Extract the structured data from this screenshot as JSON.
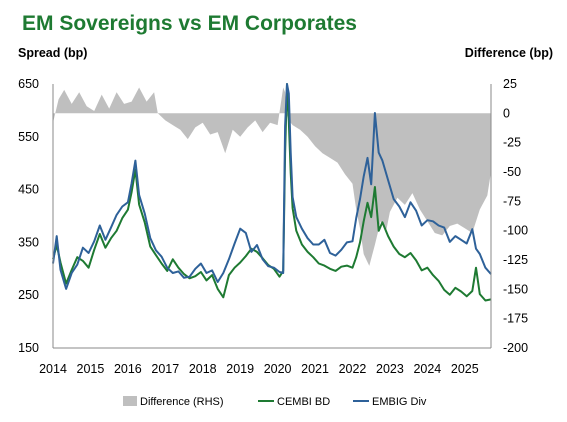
{
  "chart_data": {
    "type": "line",
    "title": "EM Sovereigns vs EM Corporates",
    "ylabel_left": "Spread (bp)",
    "ylabel_right": "Difference (bp)",
    "ylim_left": [
      150,
      650
    ],
    "ylim_right": [
      -200,
      25
    ],
    "yticks_left": [
      150,
      250,
      350,
      450,
      550,
      650
    ],
    "yticks_right": [
      -200,
      -175,
      -150,
      -125,
      -100,
      -75,
      -50,
      -25,
      0,
      25
    ],
    "xlim": [
      2014.0,
      2025.7
    ],
    "xticks": [
      "2014",
      "2015",
      "2016",
      "2017",
      "2018",
      "2019",
      "2020",
      "2021",
      "2022",
      "2023",
      "2024",
      "2025"
    ],
    "grid": false,
    "legend_position": "bottom",
    "series": [
      {
        "name": "Difference (RHS)",
        "kind": "area",
        "axis": "right",
        "color": "#bfbfbf",
        "x": [
          2014.0,
          2014.15,
          2014.3,
          2014.5,
          2014.7,
          2014.9,
          2015.1,
          2015.3,
          2015.5,
          2015.7,
          2015.9,
          2016.1,
          2016.3,
          2016.5,
          2016.7,
          2016.8,
          2017.0,
          2017.2,
          2017.4,
          2017.6,
          2017.8,
          2018.0,
          2018.2,
          2018.4,
          2018.6,
          2018.8,
          2019.0,
          2019.2,
          2019.4,
          2019.6,
          2019.8,
          2020.0,
          2020.15,
          2020.2,
          2020.25,
          2020.3,
          2020.4,
          2020.6,
          2020.8,
          2021.0,
          2021.2,
          2021.4,
          2021.6,
          2021.8,
          2022.0,
          2022.1,
          2022.2,
          2022.3,
          2022.45,
          2022.6,
          2022.75,
          2022.9,
          2023.0,
          2023.2,
          2023.4,
          2023.6,
          2023.8,
          2024.0,
          2024.2,
          2024.4,
          2024.6,
          2024.8,
          2025.0,
          2025.2,
          2025.4,
          2025.6,
          2025.7
        ],
        "values": [
          -8,
          12,
          20,
          8,
          18,
          6,
          2,
          16,
          4,
          18,
          8,
          10,
          22,
          10,
          18,
          0,
          -6,
          -10,
          -14,
          -22,
          -12,
          -8,
          -18,
          -16,
          -34,
          -14,
          -20,
          -12,
          -6,
          -16,
          -8,
          -10,
          22,
          18,
          -2,
          -6,
          -10,
          -14,
          -20,
          -28,
          -34,
          -38,
          -42,
          -52,
          -60,
          -82,
          -98,
          -120,
          -130,
          -112,
          -92,
          -100,
          -84,
          -72,
          -78,
          -68,
          -82,
          -92,
          -102,
          -104,
          -96,
          -94,
          -98,
          -102,
          -82,
          -70,
          -50
        ]
      },
      {
        "name": "CEMBI BD",
        "kind": "line",
        "axis": "left",
        "color": "#1e7a32",
        "x": [
          2014.0,
          2014.1,
          2014.2,
          2014.35,
          2014.5,
          2014.65,
          2014.8,
          2014.95,
          2015.1,
          2015.25,
          2015.4,
          2015.55,
          2015.7,
          2015.85,
          2016.0,
          2016.1,
          2016.2,
          2016.3,
          2016.45,
          2016.6,
          2016.75,
          2016.9,
          2017.05,
          2017.2,
          2017.35,
          2017.5,
          2017.65,
          2017.8,
          2017.95,
          2018.1,
          2018.25,
          2018.4,
          2018.55,
          2018.7,
          2018.85,
          2019.0,
          2019.15,
          2019.3,
          2019.45,
          2019.6,
          2019.75,
          2019.9,
          2020.05,
          2020.15,
          2020.2,
          2020.25,
          2020.3,
          2020.35,
          2020.4,
          2020.5,
          2020.65,
          2020.8,
          2020.95,
          2021.1,
          2021.25,
          2021.4,
          2021.55,
          2021.7,
          2021.85,
          2022.0,
          2022.1,
          2022.2,
          2022.3,
          2022.4,
          2022.5,
          2022.6,
          2022.7,
          2022.8,
          2022.95,
          2023.1,
          2023.25,
          2023.4,
          2023.55,
          2023.7,
          2023.85,
          2024.0,
          2024.15,
          2024.3,
          2024.45,
          2024.6,
          2024.75,
          2024.9,
          2025.05,
          2025.2,
          2025.3,
          2025.4,
          2025.55,
          2025.7
        ],
        "values": [
          318,
          345,
          312,
          272,
          298,
          322,
          315,
          302,
          336,
          366,
          340,
          358,
          372,
          396,
          412,
          445,
          488,
          422,
          388,
          342,
          326,
          310,
          296,
          318,
          302,
          290,
          282,
          286,
          294,
          278,
          288,
          262,
          246,
          288,
          302,
          312,
          324,
          338,
          332,
          320,
          307,
          300,
          285,
          296,
          518,
          650,
          580,
          482,
          415,
          372,
          346,
          332,
          322,
          310,
          306,
          300,
          296,
          304,
          306,
          302,
          322,
          350,
          390,
          425,
          398,
          455,
          372,
          388,
          362,
          342,
          328,
          322,
          330,
          316,
          297,
          302,
          288,
          277,
          260,
          251,
          264,
          257,
          248,
          258,
          302,
          252,
          240,
          242
        ]
      },
      {
        "name": "EMBIG Div",
        "kind": "line",
        "axis": "left",
        "color": "#2e6199",
        "x": [
          2014.0,
          2014.1,
          2014.2,
          2014.35,
          2014.5,
          2014.65,
          2014.8,
          2014.95,
          2015.1,
          2015.25,
          2015.4,
          2015.55,
          2015.7,
          2015.85,
          2016.0,
          2016.1,
          2016.2,
          2016.3,
          2016.45,
          2016.6,
          2016.75,
          2016.9,
          2017.05,
          2017.2,
          2017.35,
          2017.5,
          2017.65,
          2017.8,
          2017.95,
          2018.1,
          2018.25,
          2018.4,
          2018.55,
          2018.7,
          2018.85,
          2019.0,
          2019.15,
          2019.3,
          2019.45,
          2019.6,
          2019.75,
          2019.9,
          2020.05,
          2020.15,
          2020.2,
          2020.25,
          2020.3,
          2020.35,
          2020.4,
          2020.5,
          2020.65,
          2020.8,
          2020.95,
          2021.1,
          2021.25,
          2021.4,
          2021.55,
          2021.7,
          2021.85,
          2022.0,
          2022.1,
          2022.2,
          2022.3,
          2022.4,
          2022.5,
          2022.6,
          2022.7,
          2022.8,
          2022.95,
          2023.1,
          2023.25,
          2023.4,
          2023.55,
          2023.7,
          2023.85,
          2024.0,
          2024.15,
          2024.3,
          2024.45,
          2024.6,
          2024.75,
          2024.9,
          2025.05,
          2025.2,
          2025.3,
          2025.4,
          2025.55,
          2025.7
        ],
        "values": [
          310,
          362,
          298,
          262,
          292,
          308,
          340,
          330,
          352,
          382,
          355,
          378,
          402,
          418,
          426,
          462,
          505,
          440,
          405,
          358,
          335,
          323,
          302,
          292,
          295,
          283,
          285,
          300,
          310,
          292,
          297,
          275,
          292,
          318,
          348,
          376,
          368,
          332,
          345,
          318,
          305,
          302,
          294,
          292,
          570,
          650,
          632,
          520,
          436,
          398,
          376,
          358,
          346,
          346,
          355,
          330,
          325,
          336,
          350,
          352,
          396,
          432,
          475,
          510,
          460,
          595,
          520,
          505,
          468,
          432,
          418,
          398,
          426,
          410,
          382,
          392,
          390,
          382,
          378,
          351,
          362,
          355,
          348,
          375,
          338,
          328,
          302,
          290
        ]
      }
    ]
  }
}
